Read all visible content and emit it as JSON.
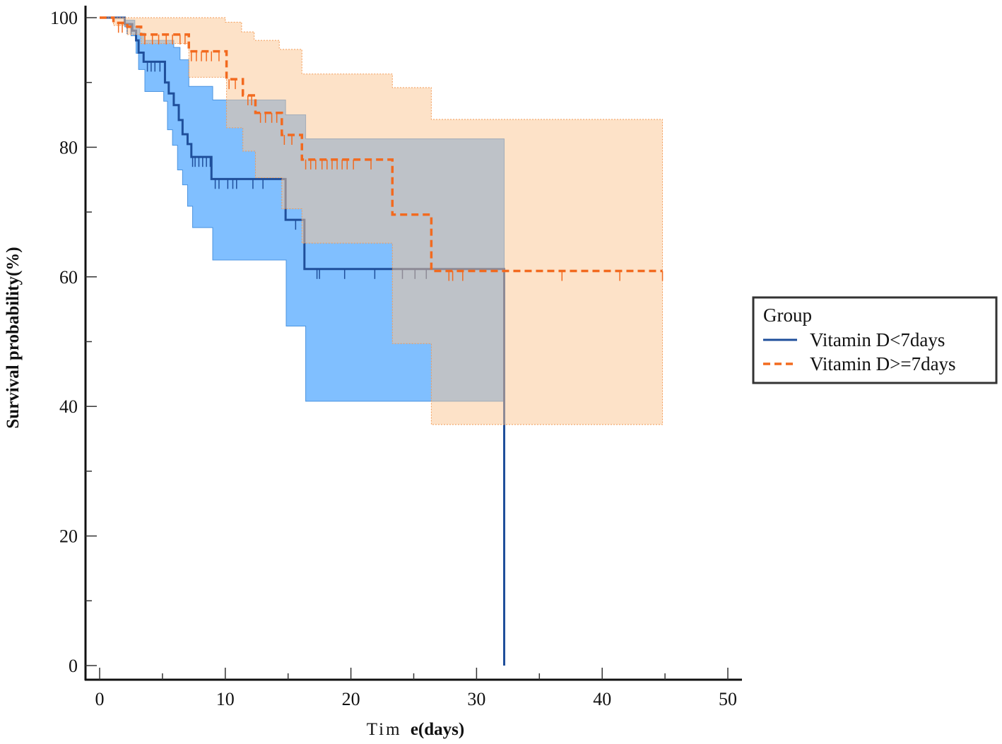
{
  "chart_data": {
    "type": "line",
    "xlabel_parts": [
      "Tim",
      "e(days)"
    ],
    "ylabel": "Survival probability(%)",
    "xlim": [
      0,
      50
    ],
    "ylim": [
      0,
      100
    ],
    "xticks": [
      0,
      10,
      20,
      30,
      40,
      50
    ],
    "xminor": [
      5,
      15,
      25,
      35,
      45
    ],
    "yticks": [
      0,
      20,
      40,
      60,
      80,
      100
    ],
    "yminor": [
      10,
      30,
      50,
      70,
      90
    ],
    "grid": false,
    "legend": {
      "title": "Group",
      "position": "right"
    },
    "series": [
      {
        "name": "Vitamin D<7days",
        "color": "#1f4f9b",
        "band_color": "#80bfff",
        "band_edge_color": "#4b94e0",
        "end": 32.2,
        "steps": [
          [
            0,
            100
          ],
          [
            2.0,
            99.0
          ],
          [
            2.6,
            98.0
          ],
          [
            2.9,
            96.5
          ],
          [
            3.1,
            94.6
          ],
          [
            3.5,
            93.2
          ],
          [
            5.2,
            90.0
          ],
          [
            5.5,
            88.3
          ],
          [
            5.9,
            86.5
          ],
          [
            6.3,
            84.2
          ],
          [
            6.6,
            82.0
          ],
          [
            7.0,
            80.5
          ],
          [
            7.3,
            78.5
          ],
          [
            8.9,
            75.1
          ],
          [
            14.8,
            68.8
          ],
          [
            16.3,
            61.2
          ],
          [
            32.2,
            0
          ]
        ],
        "censored": [
          2.2,
          2.5,
          3.8,
          4.1,
          4.4,
          4.8,
          7.4,
          7.6,
          7.9,
          8.2,
          8.5,
          8.8,
          9.2,
          9.5,
          10.2,
          10.6,
          10.9,
          12.2,
          13.0,
          15.6,
          17.3,
          17.5,
          19.5,
          21.9,
          24.1,
          25.1,
          26.0
        ],
        "ci_upper": [
          [
            0,
            100
          ],
          [
            2.0,
            99.6
          ],
          [
            2.8,
            98.6
          ],
          [
            3.2,
            97.6
          ],
          [
            3.6,
            96.5
          ],
          [
            5.9,
            95.4
          ],
          [
            6.4,
            93.5
          ],
          [
            7.1,
            89.4
          ],
          [
            9.0,
            87.3
          ],
          [
            14.8,
            85.0
          ],
          [
            16.4,
            81.3
          ]
        ],
        "ci_lower": [
          [
            0,
            100
          ],
          [
            2.0,
            98.6
          ],
          [
            2.5,
            97.2
          ],
          [
            2.9,
            94.5
          ],
          [
            3.1,
            92.0
          ],
          [
            3.6,
            88.6
          ],
          [
            5.1,
            87.1
          ],
          [
            5.4,
            82.7
          ],
          [
            5.8,
            80.3
          ],
          [
            6.2,
            76.5
          ],
          [
            6.6,
            74.2
          ],
          [
            7.0,
            70.9
          ],
          [
            7.4,
            67.6
          ],
          [
            9.0,
            62.6
          ],
          [
            14.85,
            52.4
          ],
          [
            16.4,
            40.8
          ]
        ]
      },
      {
        "name": "Vitamin D>=7days",
        "color": "#f26a1f",
        "band_color": "#fbc592",
        "band_edge_color": "#f39a55",
        "end": 44.8,
        "steps": [
          [
            0,
            100
          ],
          [
            1.1,
            99.2
          ],
          [
            2.2,
            98.6
          ],
          [
            3.3,
            97.4
          ],
          [
            7.1,
            94.8
          ],
          [
            10.1,
            90.5
          ],
          [
            11.4,
            88.0
          ],
          [
            12.4,
            85.3
          ],
          [
            14.5,
            81.9
          ],
          [
            16.1,
            78.1
          ],
          [
            23.3,
            69.6
          ],
          [
            26.4,
            60.9
          ]
        ],
        "censored": [
          1.5,
          1.8,
          3.6,
          4.2,
          4.7,
          5.3,
          5.8,
          6.4,
          6.8,
          7.3,
          7.7,
          8.1,
          8.5,
          8.9,
          9.5,
          10.3,
          10.8,
          11.8,
          12.1,
          12.8,
          13.2,
          13.7,
          14.1,
          14.7,
          15.3,
          16.4,
          16.8,
          17.2,
          17.7,
          18.1,
          18.5,
          18.9,
          19.3,
          19.7,
          20.2,
          21.6,
          27.8,
          28.1,
          28.9,
          36.8,
          41.4,
          44.8
        ],
        "ci_upper": [
          [
            0,
            100
          ],
          [
            10.0,
            99.3
          ],
          [
            11.3,
            97.8
          ],
          [
            12.3,
            96.5
          ],
          [
            14.3,
            95.1
          ],
          [
            16.1,
            91.3
          ],
          [
            23.3,
            89.2
          ],
          [
            26.4,
            84.3
          ]
        ],
        "ci_lower": [
          [
            0,
            100
          ],
          [
            1.1,
            98.8
          ],
          [
            2.2,
            97.4
          ],
          [
            3.3,
            96.0
          ],
          [
            7.1,
            90.8
          ],
          [
            10.1,
            83.0
          ],
          [
            11.4,
            79.4
          ],
          [
            12.4,
            75.3
          ],
          [
            14.5,
            70.5
          ],
          [
            16.1,
            65.2
          ],
          [
            23.3,
            49.7
          ],
          [
            26.4,
            37.2
          ]
        ]
      }
    ]
  }
}
